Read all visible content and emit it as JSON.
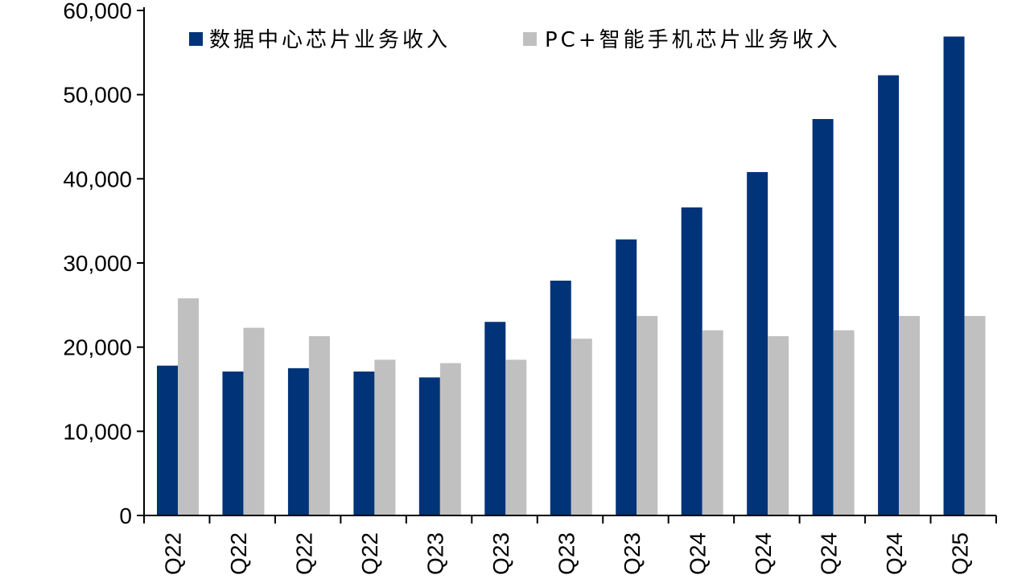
{
  "chart_data": {
    "type": "bar",
    "categories": [
      "Q22",
      "Q22",
      "Q22",
      "Q22",
      "Q23",
      "Q23",
      "Q23",
      "Q23",
      "Q24",
      "Q24",
      "Q24",
      "Q24",
      "Q25"
    ],
    "series": [
      {
        "name": "数据中心芯片业务收入",
        "color": "#003378",
        "values": [
          17800,
          17100,
          17500,
          17100,
          16400,
          23000,
          27900,
          32800,
          36600,
          40800,
          47100,
          52300,
          56900
        ]
      },
      {
        "name": "PC+智能手机芯片业务收入",
        "color": "#c0c0c0",
        "values": [
          25800,
          22300,
          21300,
          18500,
          18100,
          18500,
          21000,
          23700,
          22000,
          21300,
          22000,
          23700,
          23700
        ]
      }
    ],
    "ylim": [
      0,
      60000
    ],
    "yticks": [
      "0",
      "10,000",
      "20,000",
      "30,000",
      "40,000",
      "50,000",
      "60,000"
    ],
    "ytick_values": [
      0,
      10000,
      20000,
      30000,
      40000,
      50000,
      60000
    ],
    "grid": false,
    "legend_position": "top"
  }
}
